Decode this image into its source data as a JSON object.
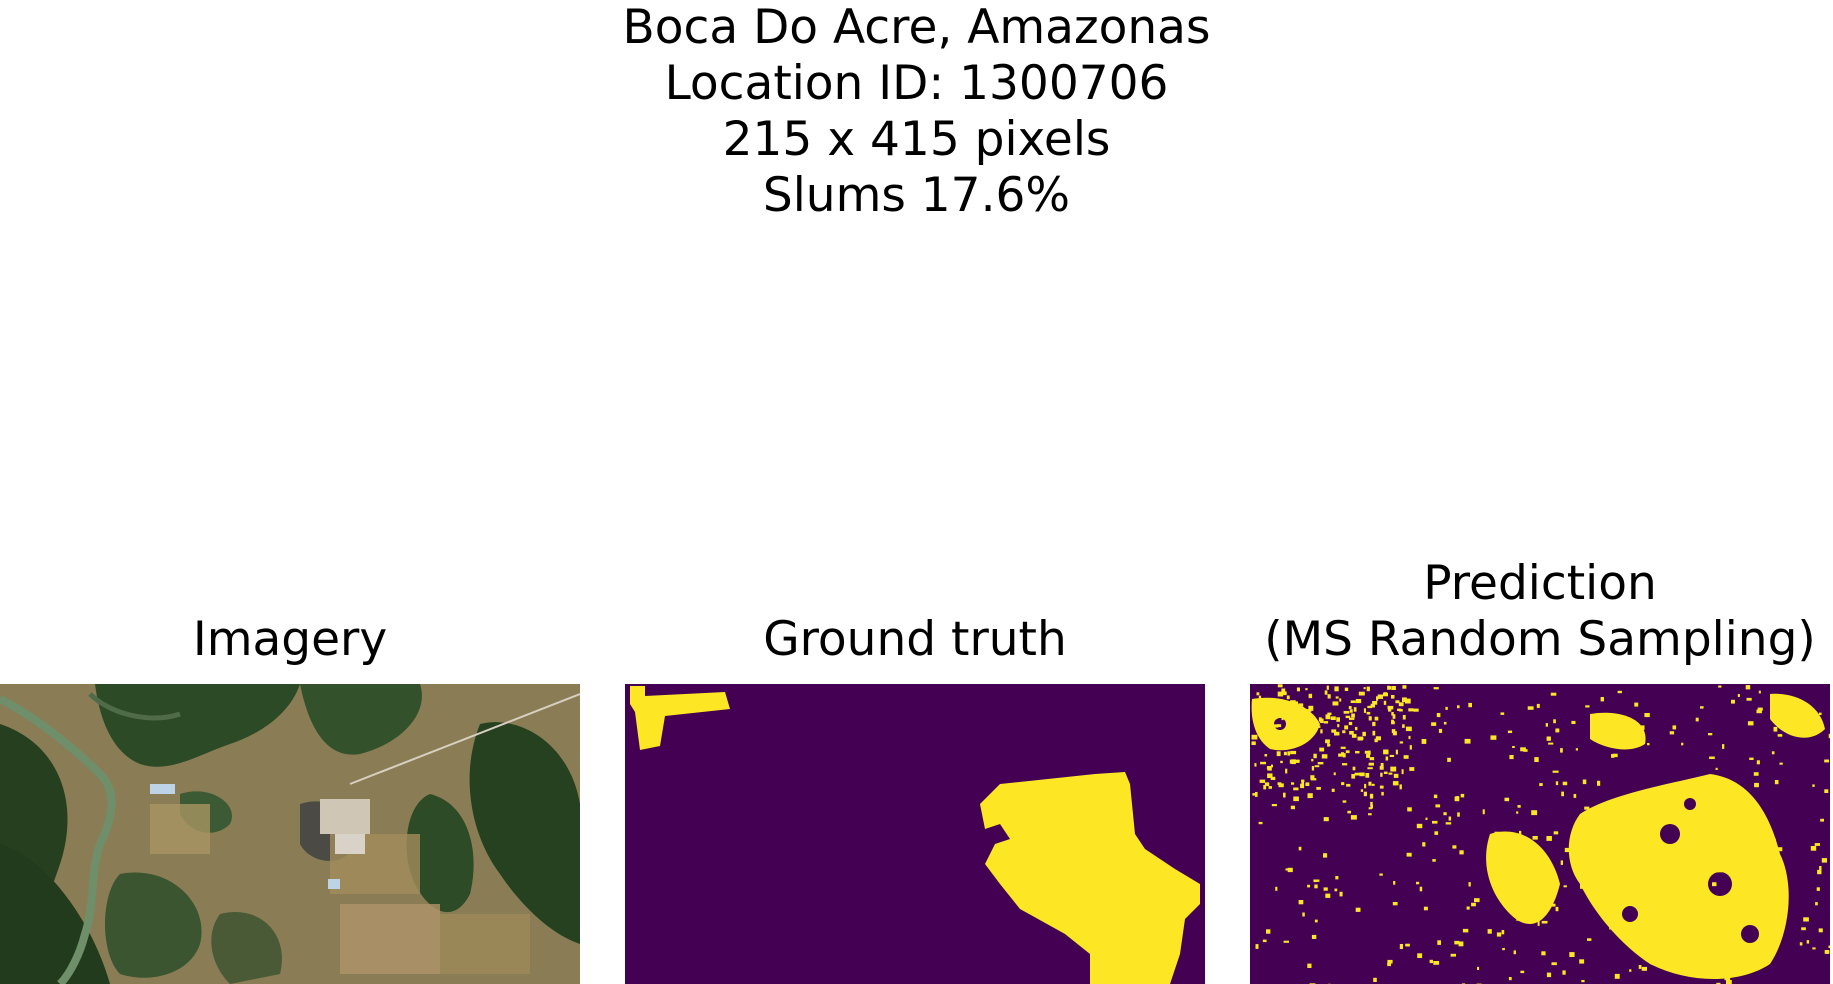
{
  "figure": {
    "title_lines": [
      "Boca Do Acre, Amazonas",
      "Location ID: 1300706",
      "215 x 415 pixels",
      "Slums 17.6%"
    ]
  },
  "panels": {
    "imagery": {
      "title": "Imagery"
    },
    "ground_truth": {
      "title": "Ground truth"
    },
    "prediction": {
      "title_lines": [
        "Prediction",
        "(MS Random Sampling)"
      ]
    }
  },
  "colors": {
    "mask_background": "#440154",
    "mask_foreground": "#fde725",
    "forest": "#2f4a24",
    "field": "#9a8a5a",
    "river": "#6f8f6a",
    "urban": "#d8d2c8"
  }
}
